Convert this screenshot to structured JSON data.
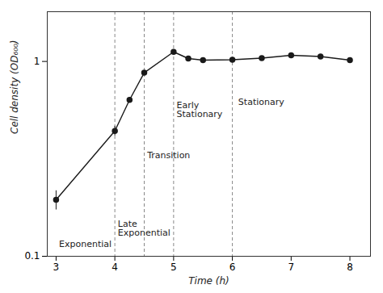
{
  "chart_data": {
    "type": "line",
    "x": [
      3,
      4,
      4.25,
      4.5,
      5,
      5.25,
      5.5,
      6,
      6.5,
      7,
      7.5,
      8
    ],
    "values": [
      0.195,
      0.44,
      0.635,
      0.875,
      1.12,
      1.035,
      1.015,
      1.02,
      1.04,
      1.075,
      1.06,
      1.015
    ],
    "yerr": [
      0.022,
      0.025,
      0.02,
      0.018,
      0.025,
      0.012,
      0.01,
      0.01,
      0.01,
      0.016,
      0.012,
      0.015
    ],
    "color": "#1a1a1a",
    "marker": "circle",
    "line_style": "solid",
    "xlabel": "Time (h)",
    "ylabel": "Cell density (OD₆₀₀)",
    "xlim": [
      2.85,
      8.35
    ],
    "xticks": [
      3,
      4,
      5,
      6,
      7,
      8
    ],
    "ylim": [
      0.1,
      1.8
    ],
    "yticks": [
      0.1,
      1
    ],
    "log": "y",
    "grid": false,
    "vlines": {
      "x": [
        4.0,
        4.5,
        5.0,
        6.0
      ],
      "color": "#888888",
      "line_style": "dashed"
    },
    "annotations": [
      {
        "text": "Exponential",
        "x": 3.05,
        "y": 0.112
      },
      {
        "text": "Late\nExponential",
        "x": 4.05,
        "y": 0.128
      },
      {
        "text": "Transition",
        "x": 4.55,
        "y": 0.32
      },
      {
        "text": "Early\nStationary",
        "x": 5.05,
        "y": 0.52
      },
      {
        "text": "Stationary",
        "x": 6.1,
        "y": 0.6
      }
    ]
  }
}
